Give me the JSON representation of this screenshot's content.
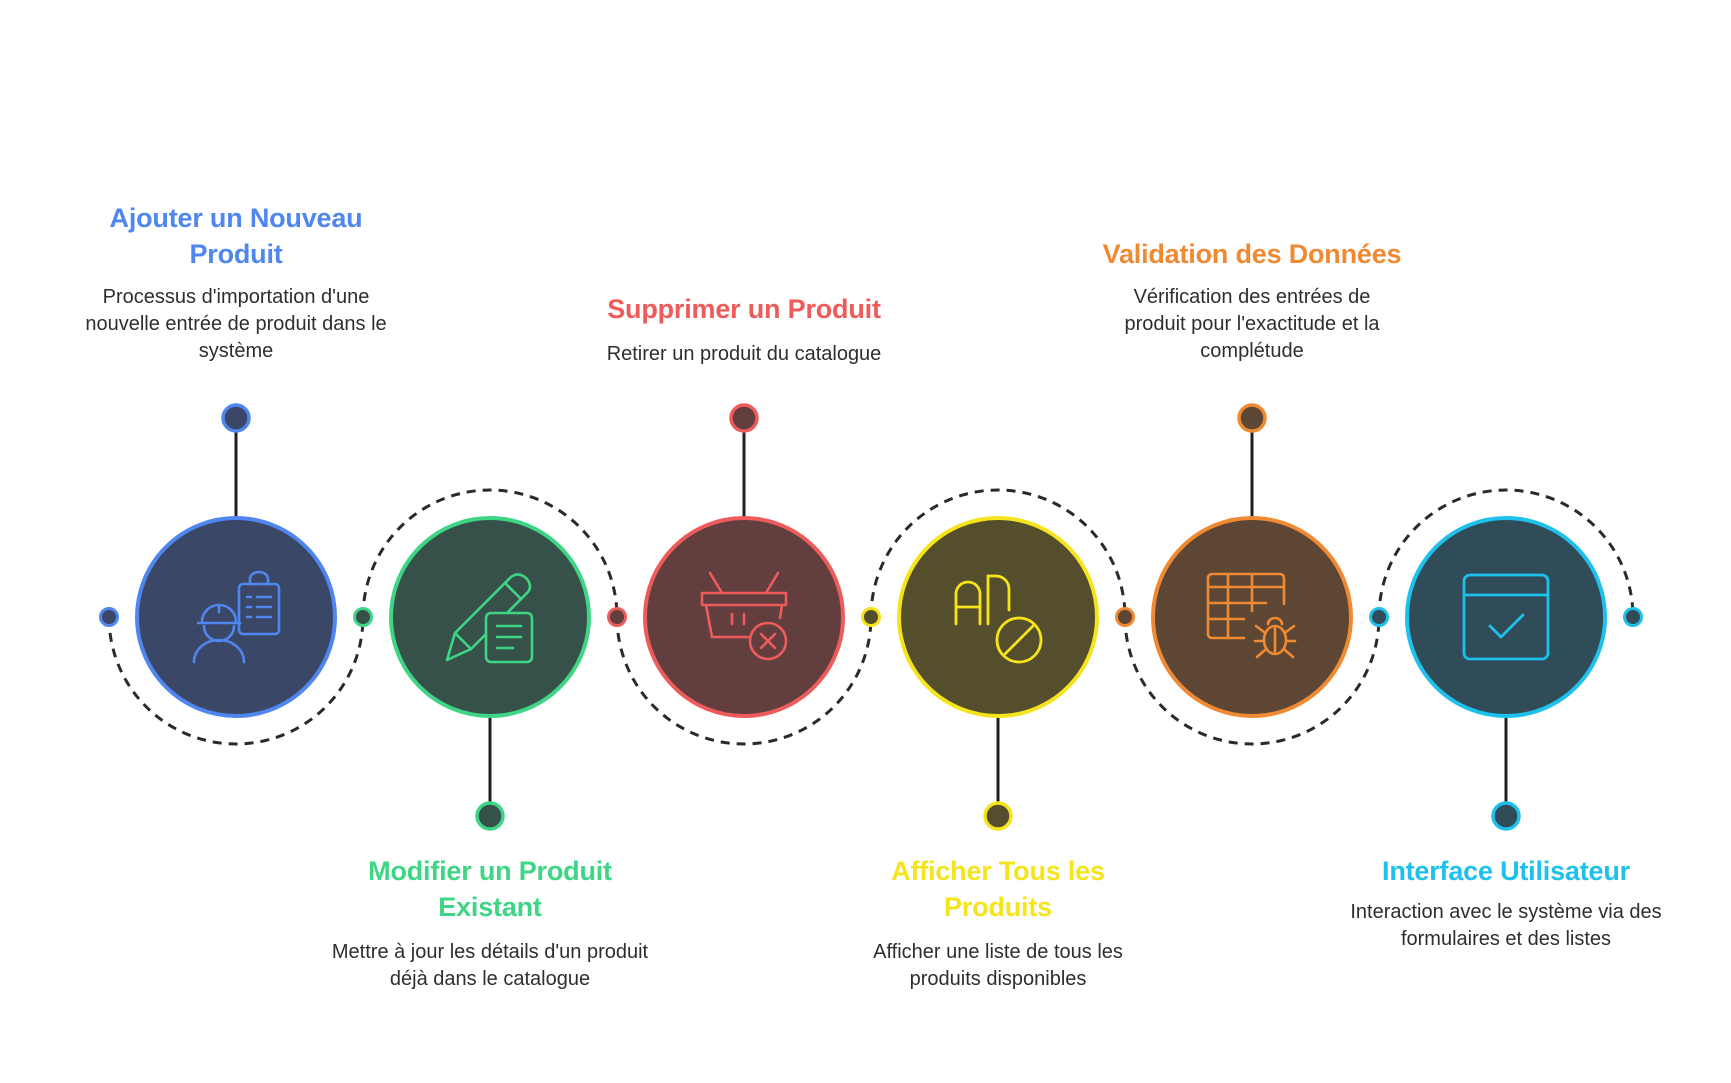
{
  "colors": {
    "connector": "#1f1f1f",
    "dashed": "#2a2a2a"
  },
  "steps": [
    {
      "title": "Ajouter un Nouveau Produit",
      "description": "Processus d'importation d'une nouvelle entrée de produit dans le système",
      "icon": "worker-clipboard-icon",
      "accent": "#4f86f0",
      "fill": "#3b4766",
      "text_position": "top"
    },
    {
      "title": "Modifier un Produit Existant",
      "description": "Mettre à jour les détails d'un produit déjà dans le catalogue",
      "icon": "pencil-document-icon",
      "accent": "#3ed585",
      "fill": "#36514a",
      "text_position": "bottom"
    },
    {
      "title": "Supprimer un Produit",
      "description": "Retirer un produit du catalogue",
      "icon": "basket-remove-icon",
      "accent": "#ee5b5b",
      "fill": "#633e3f",
      "text_position": "top"
    },
    {
      "title": "Afficher Tous les Produits",
      "description": "Afficher une liste de tous les produits disponibles",
      "icon": "all-products-icon",
      "accent": "#f5e41b",
      "fill": "#554e2c",
      "text_position": "bottom"
    },
    {
      "title": "Validation des Données",
      "description": "Vérification des entrées de produit pour l'exactitude et la complétude",
      "icon": "table-bug-icon",
      "accent": "#f08a32",
      "fill": "#5e4634",
      "text_position": "top"
    },
    {
      "title": "Interface Utilisateur",
      "description": "Interaction avec le système via des formulaires et des listes",
      "icon": "window-check-icon",
      "accent": "#1ec0ec",
      "fill": "#304c59",
      "text_position": "bottom"
    }
  ]
}
